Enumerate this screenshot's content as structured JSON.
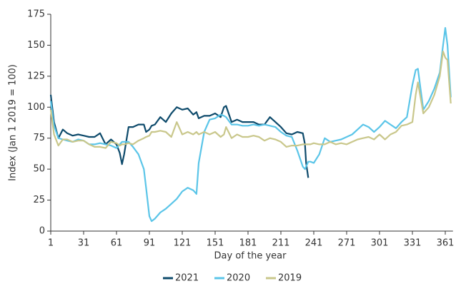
{
  "chart_data": {
    "type": "line",
    "xlabel": "Day of the year",
    "ylabel": "Index (Jan 1 2019 = 100)",
    "x": [
      1,
      4,
      8,
      12,
      16,
      21,
      26,
      31,
      36,
      41,
      46,
      51,
      56,
      61,
      64,
      66,
      68,
      72,
      76,
      81,
      86,
      88,
      91,
      93,
      96,
      101,
      106,
      111,
      116,
      121,
      126,
      131,
      134,
      136,
      141,
      146,
      151,
      156,
      159,
      161,
      166,
      171,
      176,
      181,
      186,
      191,
      196,
      201,
      206,
      211,
      216,
      221,
      226,
      231,
      233,
      234,
      236,
      238,
      241,
      246,
      251,
      256,
      261,
      266,
      271,
      276,
      281,
      286,
      291,
      296,
      301,
      306,
      311,
      316,
      321,
      326,
      331,
      334,
      336,
      341,
      346,
      351,
      356,
      359,
      361,
      363,
      366
    ],
    "series": [
      {
        "name": "2021",
        "color": "#0d4a6b",
        "values": [
          110,
          88,
          75,
          82,
          79,
          77,
          78,
          77,
          76,
          76,
          79,
          70,
          74,
          70,
          63,
          54,
          62,
          84,
          84,
          86,
          86,
          80,
          82,
          85,
          86,
          92,
          88,
          95,
          100,
          98,
          99,
          94,
          96,
          91,
          93,
          93,
          95,
          92,
          100,
          101,
          88,
          90,
          88,
          88,
          88,
          86,
          86,
          92,
          88,
          84,
          79,
          78,
          80,
          79,
          70,
          55,
          43,
          null,
          null,
          null,
          null,
          null,
          null,
          null,
          null,
          null,
          null,
          null,
          null,
          null,
          null,
          null,
          null,
          null,
          null,
          null,
          null,
          null,
          null,
          null,
          null,
          null,
          null,
          null,
          null,
          null,
          null
        ]
      },
      {
        "name": "2020",
        "color": "#5bc5e8",
        "values": [
          105,
          85,
          75,
          74,
          73,
          72,
          74,
          73,
          70,
          70,
          71,
          70,
          69,
          67,
          70,
          72,
          72,
          72,
          68,
          62,
          50,
          35,
          12,
          8,
          10,
          15,
          18,
          22,
          26,
          32,
          35,
          33,
          30,
          55,
          80,
          90,
          91,
          94,
          93,
          92,
          86,
          86,
          85,
          85,
          86,
          85,
          86,
          85,
          84,
          80,
          77,
          76,
          65,
          52,
          50,
          52,
          56,
          56,
          55,
          62,
          75,
          72,
          73,
          74,
          76,
          78,
          82,
          86,
          84,
          80,
          84,
          89,
          86,
          83,
          88,
          92,
          118,
          130,
          131,
          98,
          105,
          115,
          128,
          150,
          164,
          150,
          108
        ]
      },
      {
        "name": "2019",
        "color": "#c9c78b",
        "values": [
          98,
          78,
          69,
          74,
          74,
          72,
          73,
          73,
          70,
          68,
          68,
          67,
          72,
          71,
          69,
          70,
          70,
          71,
          70,
          73,
          75,
          76,
          77,
          80,
          80,
          81,
          80,
          76,
          88,
          78,
          80,
          78,
          80,
          78,
          80,
          78,
          80,
          76,
          78,
          84,
          75,
          78,
          76,
          76,
          77,
          76,
          73,
          75,
          74,
          72,
          68,
          69,
          69,
          70,
          70,
          70,
          70,
          70,
          71,
          70,
          70,
          72,
          70,
          71,
          70,
          72,
          74,
          75,
          76,
          74,
          78,
          74,
          78,
          80,
          85,
          86,
          88,
          110,
          120,
          95,
          100,
          110,
          125,
          145,
          140,
          138,
          103
        ]
      }
    ],
    "xlim": [
      1,
      368
    ],
    "xticks": [
      1,
      31,
      61,
      91,
      121,
      151,
      181,
      211,
      241,
      271,
      301,
      331,
      361
    ],
    "ylim": [
      0,
      175
    ],
    "yticks": [
      0,
      25,
      50,
      75,
      100,
      125,
      150,
      175
    ],
    "grid": false,
    "legend": "bottom"
  }
}
